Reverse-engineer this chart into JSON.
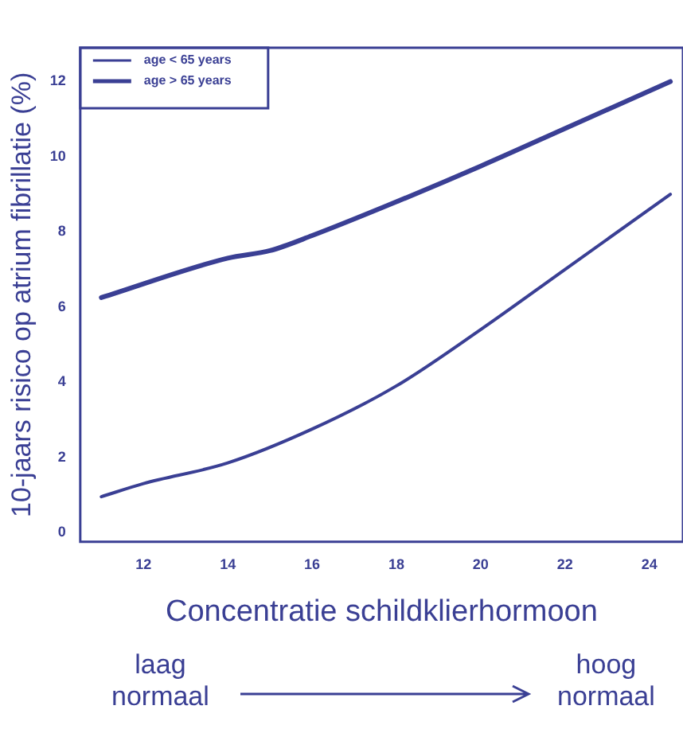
{
  "chart_data": {
    "type": "line",
    "xlabel": "Concentratie schildklierhormoon",
    "ylabel": "10-jaars risico op atrium fibrillatie (%)",
    "x": [
      11,
      12,
      14,
      16,
      18,
      20,
      22,
      24.5
    ],
    "series": [
      {
        "name": "age < 65 years",
        "color": "#3a3f94",
        "values": [
          0.95,
          1.3,
          1.85,
          2.75,
          3.9,
          5.4,
          7.0,
          9.0
        ]
      },
      {
        "name": "age > 65 years",
        "color": "#3a3f94",
        "x": [
          11,
          14,
          15,
          16,
          18,
          20,
          22,
          24.5
        ],
        "values": [
          6.25,
          7.3,
          7.5,
          7.9,
          8.8,
          9.75,
          10.75,
          12.0
        ]
      }
    ],
    "xlim": [
      10.5,
      24.8
    ],
    "xticks": [
      12,
      14,
      16,
      18,
      20,
      22,
      24
    ],
    "ylim": [
      -0.25,
      12.9
    ],
    "yticks": [
      0,
      2,
      4,
      6,
      8,
      10,
      12
    ],
    "grid": false,
    "legend": "top left",
    "marker": "none",
    "line_style": "solid",
    "annotations": [
      "laag\nnormaal",
      "hoog\nnormaal"
    ]
  }
}
